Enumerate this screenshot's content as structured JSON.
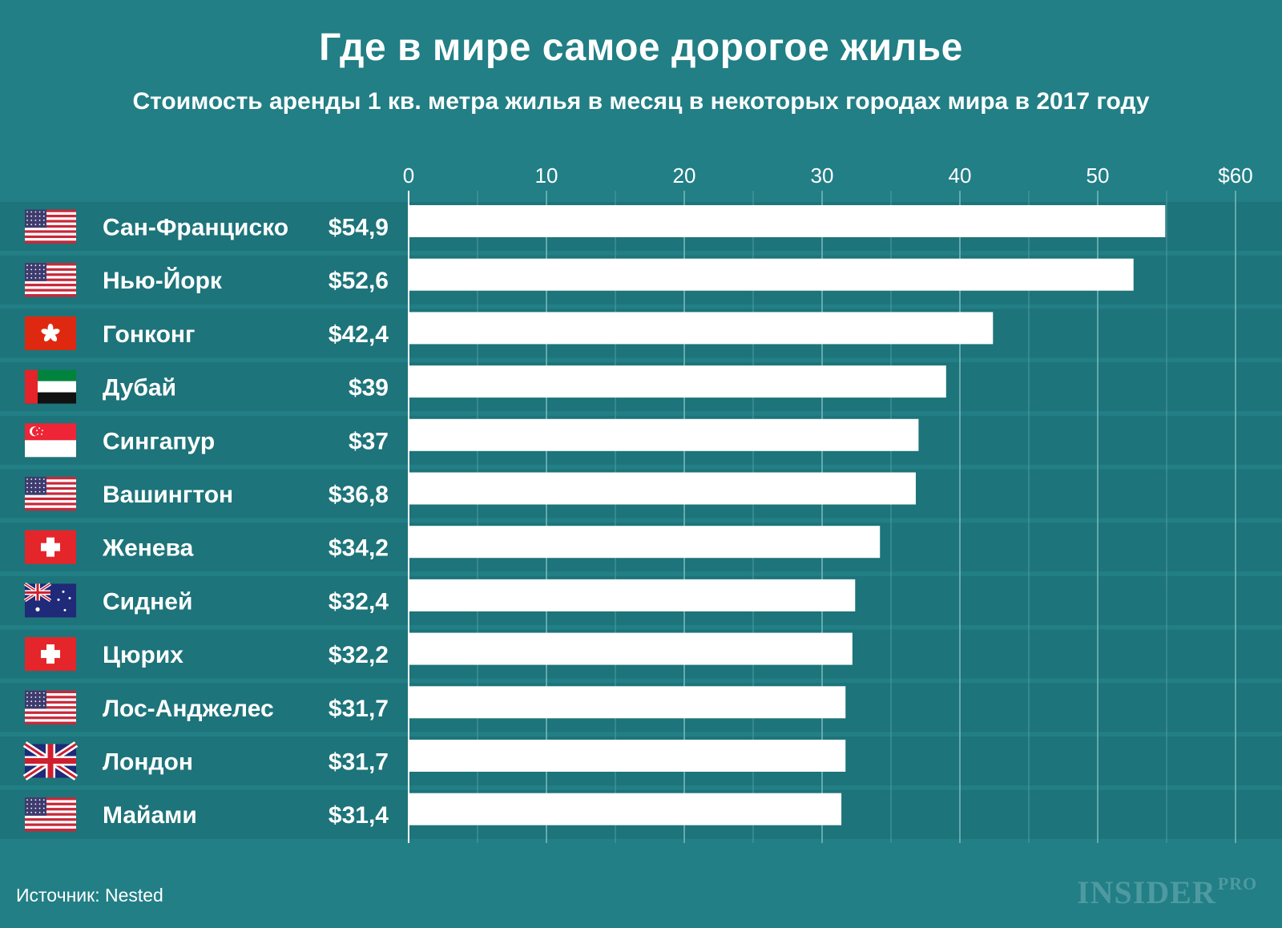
{
  "header": {
    "title": "Где в мире самое дорогое жилье",
    "subtitle": "Стоимость аренды 1 кв. метра жилья в месяц в некоторых городах мира в 2017 году"
  },
  "footer": {
    "source": "Источник: Nested",
    "logo_main": "INSIDER",
    "logo_sub": "PRO"
  },
  "colors": {
    "background": "#217f85",
    "row_band": "#1d747a",
    "bar": "#ffffff",
    "grid": "#5ea9ad"
  },
  "chart_data": {
    "type": "bar",
    "orientation": "horizontal",
    "title": "Где в мире самое дорогое жилье",
    "subtitle": "Стоимость аренды 1 кв. метра жилья в месяц в некоторых городах мира в 2017 году",
    "xlim": [
      0,
      60
    ],
    "tick_values": [
      0,
      10,
      20,
      30,
      40,
      50,
      60
    ],
    "tick_labels": [
      "0",
      "10",
      "20",
      "30",
      "40",
      "50",
      "$60"
    ],
    "grid": true,
    "categories": [
      "Сан-Франциско",
      "Нью-Йорк",
      "Гонконг",
      "Дубай",
      "Сингапур",
      "Вашингтон",
      "Женева",
      "Сидней",
      "Цюрих",
      "Лос-Анджелес",
      "Лондон",
      "Майами"
    ],
    "values": [
      54.9,
      52.6,
      42.4,
      39,
      37,
      36.8,
      34.2,
      32.4,
      32.2,
      31.7,
      31.7,
      31.4
    ],
    "value_labels": [
      "$54,9",
      "$52,6",
      "$42,4",
      "$39",
      "$37",
      "$36,8",
      "$34,2",
      "$32,4",
      "$32,2",
      "$31,7",
      "$31,7",
      "$31,4"
    ],
    "flags": [
      "us-flag-icon",
      "us-flag-icon",
      "hong-kong-flag-icon",
      "uae-flag-icon",
      "singapore-flag-icon",
      "us-flag-icon",
      "swiss-flag-icon",
      "australia-flag-icon",
      "swiss-flag-icon",
      "us-flag-icon",
      "uk-flag-icon",
      "us-flag-icon"
    ]
  }
}
